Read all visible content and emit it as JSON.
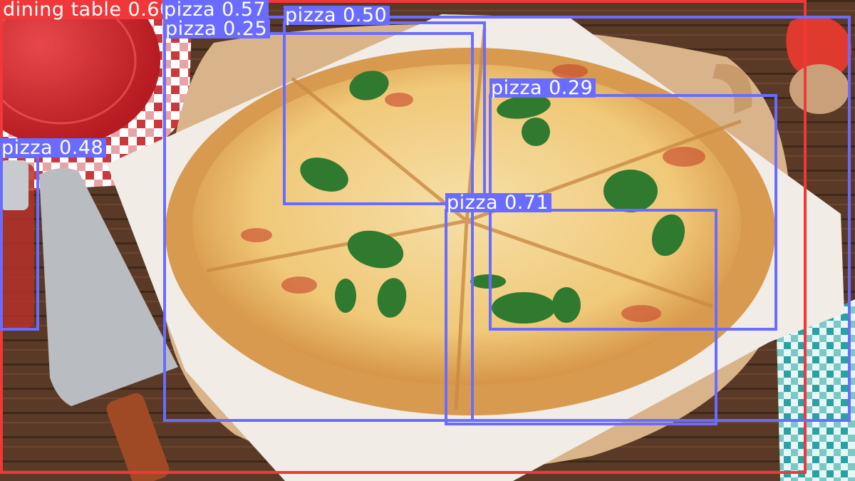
{
  "image": {
    "subject": "margherita pizza on wooden board with parchment, pizza server, red plate, checkered napkins",
    "colors": {
      "table_wood": "#5a3a26",
      "board": "#d9b48a",
      "parchment": "#f1ece6",
      "crust": "#d79a4f",
      "cheese": "#f3d58f",
      "basil": "#2f7a2e",
      "plate_red": "#d8262b",
      "napkin_teal": "#2aa1a3"
    }
  },
  "detections": [
    {
      "label": "dining table 0.60",
      "class": "dining table",
      "confidence": 0.6,
      "color": "#f0373a"
    },
    {
      "label": "pizza 0.57",
      "class": "pizza",
      "confidence": 0.57,
      "color": "#6a6cff"
    },
    {
      "label": "pizza 0.50",
      "class": "pizza",
      "confidence": 0.5,
      "color": "#6a6cff"
    },
    {
      "label": "pizza 0.25",
      "class": "pizza",
      "confidence": 0.25,
      "color": "#6a6cff"
    },
    {
      "label": "pizza 0.48",
      "class": "pizza",
      "confidence": 0.48,
      "color": "#6a6cff"
    },
    {
      "label": "pizza 0.29",
      "class": "pizza",
      "confidence": 0.29,
      "color": "#6a6cff"
    },
    {
      "label": "pizza 0.71",
      "class": "pizza",
      "confidence": 0.71,
      "color": "#6a6cff"
    }
  ]
}
